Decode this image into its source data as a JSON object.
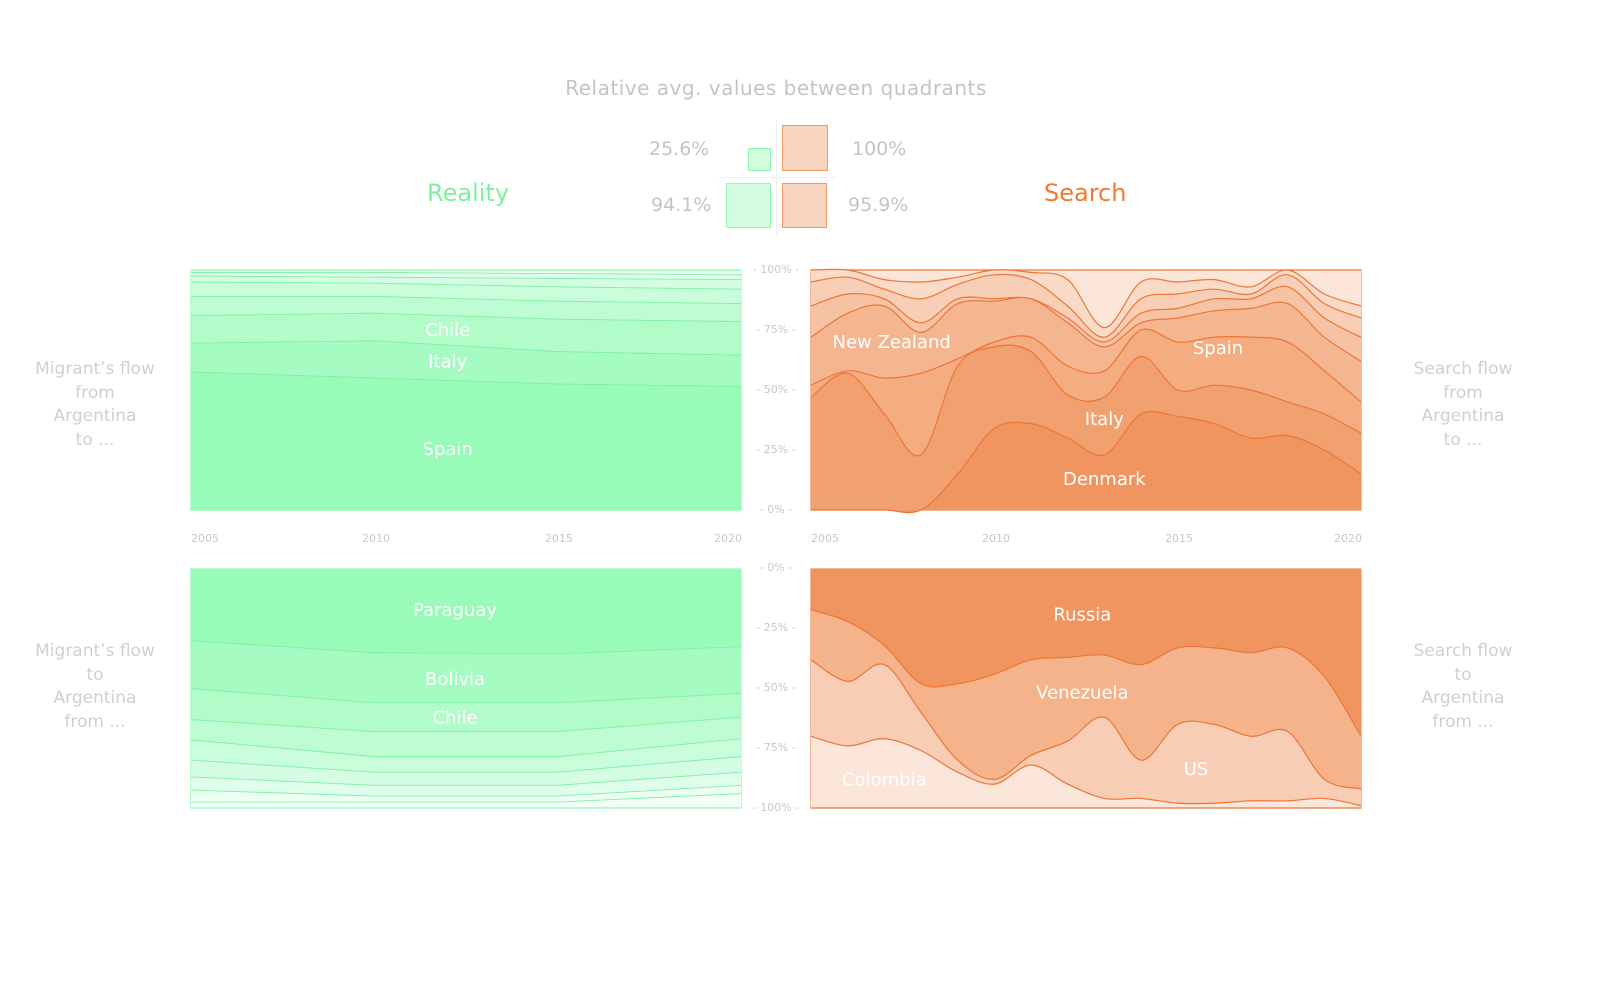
{
  "header": {
    "title": "Relative avg. values between quadrants",
    "reality_label": "Reality",
    "search_label": "Search",
    "quadrant_values": {
      "top_left": "25.6%",
      "top_right": "100%",
      "bottom_left": "94.1%",
      "bottom_right": "95.9%"
    },
    "quadrant_fractions": {
      "top_left": 0.256,
      "top_right": 1.0,
      "bottom_left": 0.941,
      "bottom_right": 0.959
    }
  },
  "side_labels": {
    "left_top": [
      "Migrant’s flow",
      "from",
      "Argentina",
      "to ..."
    ],
    "left_bottom": [
      "Migrant’s flow",
      "to",
      "Argentina",
      "from ..."
    ],
    "right_top": [
      "Search flow",
      "from",
      "Argentina",
      "to ..."
    ],
    "right_bottom": [
      "Search flow",
      "to",
      "Argentina",
      "from ..."
    ]
  },
  "colors": {
    "reality": "#7ef0a0",
    "search": "#ef7a3a",
    "reality_label": "#7ef0a0",
    "search_label": "#f07a32"
  },
  "y_ticks_top": [
    "- 100% -",
    "- 75% -",
    "- 50% -",
    "- 25% -",
    "- 0% -"
  ],
  "y_ticks_bottom": [
    "- 0% -",
    "- 25% -",
    "- 50% -",
    "- 75% -",
    "- 100% -"
  ],
  "x_ticks": [
    "2005",
    "2010",
    "2015",
    "2020"
  ],
  "chart_data": [
    {
      "id": "reality-from",
      "type": "area",
      "stacked": "percent",
      "title": "Migrant’s flow from Argentina to ...",
      "x": [
        2005,
        2010,
        2015,
        2020
      ],
      "ylim": [
        0,
        100
      ],
      "curve": "linear",
      "layers": [
        {
          "name": "Spain",
          "cumulative_upper": [
            57.5,
            55,
            52.5,
            51.5
          ]
        },
        {
          "name": "Italy",
          "cumulative_upper": [
            69.5,
            70.5,
            66,
            64.5
          ]
        },
        {
          "name": "Chile",
          "cumulative_upper": [
            81,
            82,
            79.5,
            78.5
          ]
        },
        {
          "name": "",
          "cumulative_upper": [
            89,
            89,
            87,
            86
          ]
        },
        {
          "name": "",
          "cumulative_upper": [
            95,
            94.5,
            93,
            92
          ]
        },
        {
          "name": "",
          "cumulative_upper": [
            97.5,
            97,
            96.5,
            96
          ]
        },
        {
          "name": "",
          "cumulative_upper": [
            99,
            99,
            98.5,
            98
          ]
        },
        {
          "name": "",
          "cumulative_upper": [
            100,
            100,
            100,
            100
          ]
        }
      ],
      "labels": [
        {
          "text": "Spain",
          "x": 2012,
          "y": 25
        },
        {
          "text": "Italy",
          "x": 2012,
          "y": 61.5
        },
        {
          "text": "Chile",
          "x": 2012,
          "y": 74.5
        }
      ]
    },
    {
      "id": "search-from",
      "type": "area",
      "stacked": "percent",
      "title": "Search flow from Argentina to ...",
      "x": [
        2005,
        2006,
        2007,
        2008,
        2009,
        2010,
        2011,
        2012,
        2013,
        2014,
        2015,
        2016,
        2017,
        2018,
        2019,
        2020
      ],
      "ylim": [
        0,
        100
      ],
      "curve": "smooth",
      "layers": [
        {
          "name": "Denmark",
          "cumulative_upper": [
            0,
            0,
            0,
            0,
            15,
            34,
            36,
            30,
            23,
            40,
            39,
            36,
            30,
            31,
            25,
            15
          ]
        },
        {
          "name": "Italy",
          "cumulative_upper": [
            47,
            57,
            40,
            23,
            60,
            68,
            66,
            48,
            47,
            64,
            50,
            52,
            50,
            45,
            40,
            32
          ]
        },
        {
          "name": "",
          "cumulative_upper": [
            52,
            58,
            55,
            57,
            63,
            70,
            72,
            60,
            58,
            75,
            70,
            72,
            72,
            70,
            58,
            45
          ]
        },
        {
          "name": "Spain",
          "cumulative_upper": [
            72,
            82,
            85,
            74,
            86,
            87,
            88,
            78,
            68,
            78,
            80,
            83,
            84,
            86,
            72,
            62
          ]
        },
        {
          "name": "New Zealand",
          "cumulative_upper": [
            85,
            90,
            88,
            78,
            88,
            88,
            88,
            80,
            70,
            82,
            84,
            88,
            88,
            93,
            80,
            72
          ]
        },
        {
          "name": "",
          "cumulative_upper": [
            95,
            97,
            92,
            88,
            94,
            98,
            96,
            85,
            72,
            88,
            90,
            92,
            90,
            98,
            86,
            80
          ]
        },
        {
          "name": "",
          "cumulative_upper": [
            100,
            100,
            96,
            95,
            97,
            100,
            99,
            96,
            76,
            95,
            95,
            96,
            93,
            100,
            90,
            85
          ]
        },
        {
          "name": "",
          "cumulative_upper": [
            100,
            100,
            100,
            100,
            100,
            100,
            100,
            100,
            100,
            100,
            100,
            100,
            100,
            100,
            100,
            100
          ]
        }
      ],
      "labels": [
        {
          "text": "New Zealand",
          "x": 2007.2,
          "y": 69.5
        },
        {
          "text": "Spain",
          "x": 2016.1,
          "y": 67
        },
        {
          "text": "Italy",
          "x": 2013,
          "y": 37.5
        },
        {
          "text": "Denmark",
          "x": 2013,
          "y": 12.5
        }
      ]
    },
    {
      "id": "reality-to",
      "type": "area",
      "stacked": "percent",
      "title": "Migrant’s flow to Argentina from ...",
      "x": [
        2005,
        2010,
        2015,
        2020
      ],
      "ylim": [
        0,
        100
      ],
      "inverted": true,
      "curve": "linear",
      "layers": [
        {
          "name": "Paraguay",
          "cumulative_upper": [
            30,
            35,
            35.5,
            32.5
          ]
        },
        {
          "name": "Bolivia",
          "cumulative_upper": [
            50,
            56,
            56,
            52
          ]
        },
        {
          "name": "Chile",
          "cumulative_upper": [
            63,
            68,
            68,
            62
          ]
        },
        {
          "name": "",
          "cumulative_upper": [
            71.5,
            78.5,
            78.5,
            71
          ]
        },
        {
          "name": "",
          "cumulative_upper": [
            80,
            85,
            85,
            78.5
          ]
        },
        {
          "name": "",
          "cumulative_upper": [
            87,
            90.5,
            90.5,
            85
          ]
        },
        {
          "name": "",
          "cumulative_upper": [
            92.5,
            95,
            95,
            90.5
          ]
        },
        {
          "name": "",
          "cumulative_upper": [
            97.5,
            97.5,
            97.5,
            94
          ]
        },
        {
          "name": "",
          "cumulative_upper": [
            100,
            100,
            100,
            100
          ]
        }
      ],
      "labels": [
        {
          "text": "Paraguay",
          "x": 2012.2,
          "y": 17.5
        },
        {
          "text": "Bolivia",
          "x": 2012.2,
          "y": 46.5
        },
        {
          "text": "Chile",
          "x": 2012.2,
          "y": 62.5
        }
      ]
    },
    {
      "id": "search-to",
      "type": "area",
      "stacked": "percent",
      "title": "Search flow to Argentina from ...",
      "x": [
        2005,
        2006,
        2007,
        2008,
        2009,
        2010,
        2011,
        2012,
        2013,
        2014,
        2015,
        2016,
        2017,
        2018,
        2019,
        2020
      ],
      "ylim": [
        0,
        100
      ],
      "inverted": true,
      "curve": "smooth",
      "layers": [
        {
          "name": "Russia",
          "cumulative_upper": [
            17,
            22,
            32,
            48,
            48,
            44,
            38,
            37,
            36,
            40,
            33,
            33,
            35,
            33,
            45,
            70
          ]
        },
        {
          "name": "Venezuela",
          "cumulative_upper": [
            38,
            47,
            40,
            60,
            80,
            88,
            78,
            72,
            62,
            80,
            65,
            65,
            70,
            68,
            88,
            92
          ]
        },
        {
          "name": "US",
          "cumulative_upper": [
            70,
            74,
            71,
            76,
            85,
            90,
            82,
            90,
            96,
            96,
            98,
            98,
            97,
            97,
            96,
            99
          ]
        },
        {
          "name": "Colombia",
          "cumulative_upper": [
            100,
            100,
            100,
            100,
            100,
            100,
            100,
            100,
            100,
            100,
            100,
            100,
            100,
            100,
            100,
            100
          ]
        }
      ],
      "labels": [
        {
          "text": "Russia",
          "x": 2012.4,
          "y": 19.5
        },
        {
          "text": "Venezuela",
          "x": 2012.4,
          "y": 52
        },
        {
          "text": "US",
          "x": 2015.5,
          "y": 84
        },
        {
          "text": "Colombia",
          "x": 2007,
          "y": 88.5
        }
      ]
    }
  ]
}
